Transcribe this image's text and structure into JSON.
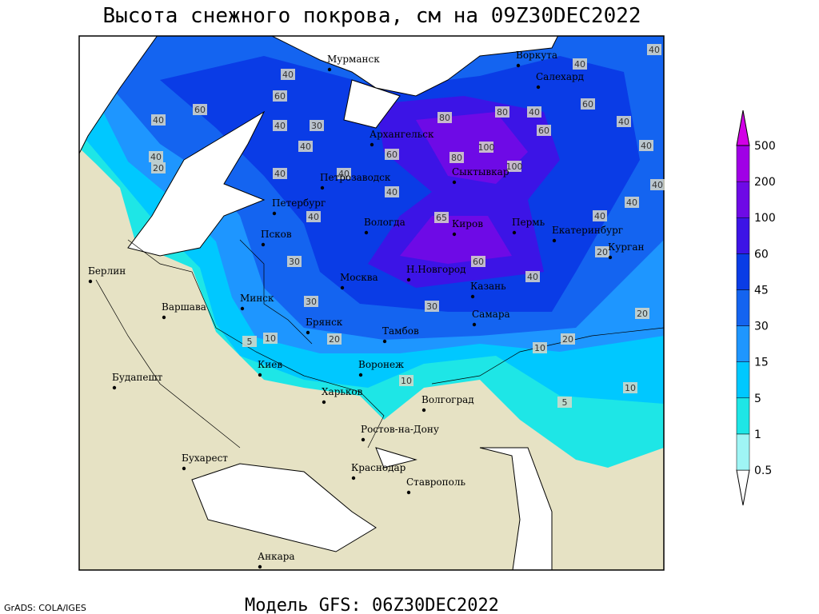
{
  "header": {
    "title": "Высота снежного покрова, см на 09Z30DEC2022"
  },
  "footer": {
    "model": "Модель GFS: 06Z30DEC2022",
    "credit": "GrADS: COLA/IGES"
  },
  "legend": {
    "levels": [
      0.5,
      1,
      5,
      15,
      30,
      45,
      60,
      100,
      200,
      500
    ],
    "colors": [
      "#ffffff",
      "#9ff5f5",
      "#1ee6e6",
      "#00c8ff",
      "#1e96ff",
      "#1464f0",
      "#0a3ce6",
      "#3c14e6",
      "#6e0ae6",
      "#a000e6",
      "#d200e6"
    ]
  },
  "cities": [
    "Мурманск",
    "Воркута",
    "Салехард",
    "Архангельск",
    "Сыктывкар",
    "Петрозаводск",
    "Петербург",
    "Вологда",
    "Киров",
    "Пермь",
    "Екатеринбург",
    "Курган",
    "Псков",
    "Н.Новгород",
    "Москва",
    "Казань",
    "Минск",
    "Берлин",
    "Варшава",
    "Брянск",
    "Тамбов",
    "Самара",
    "Киев",
    "Воронеж",
    "Будапешт",
    "Харьков",
    "Волгоград",
    "Ростов-на-Дону",
    "Бухарест",
    "Краснодар",
    "Ставрополь",
    "Анкара"
  ],
  "contour_labels": [
    40,
    60,
    60,
    40,
    40,
    20,
    40,
    30,
    40,
    80,
    80,
    100,
    80,
    60,
    100,
    60,
    40,
    60,
    40,
    40,
    40,
    40,
    40,
    40,
    40,
    40,
    65,
    60,
    40,
    40,
    20,
    30,
    30,
    30,
    20,
    10,
    5,
    10,
    10,
    20,
    20,
    10,
    5,
    40,
    40
  ]
}
